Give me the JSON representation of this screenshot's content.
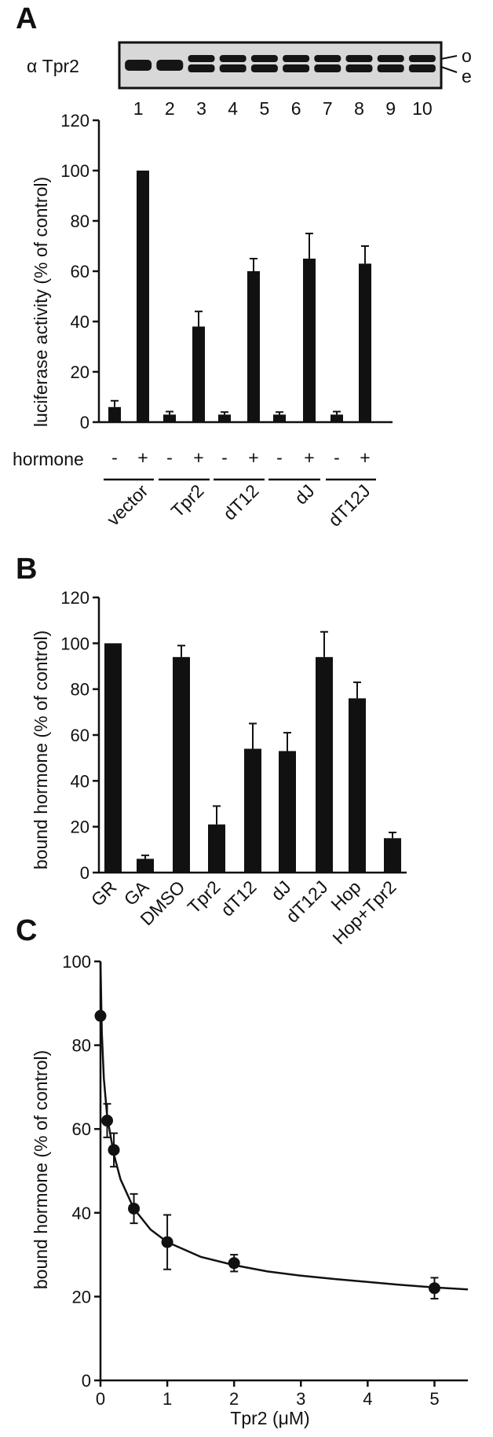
{
  "figure": {
    "colors": {
      "ink": "#111111",
      "bar": "#111111",
      "blot_bg": "#d9d9d9",
      "background": "#ffffff"
    }
  },
  "panels": {
    "A": {
      "letter": "A",
      "blot": {
        "antibody_label": "α Tpr2",
        "lanes": [
          "1",
          "2",
          "3",
          "4",
          "5",
          "6",
          "7",
          "8",
          "9",
          "10"
        ],
        "band_labels": {
          "upper": "o",
          "lower": "e"
        }
      }
    },
    "B": {
      "letter": "B"
    },
    "C": {
      "letter": "C"
    }
  },
  "chart_data": [
    {
      "id": "A",
      "type": "bar",
      "ylabel": "luciferase activity (% of control)",
      "ylim": [
        0,
        120
      ],
      "yticks": [
        0,
        20,
        40,
        60,
        80,
        100,
        120
      ],
      "row_label": "hormone",
      "categories": [
        "-",
        "+",
        "-",
        "+",
        "-",
        "+",
        "-",
        "+",
        "-",
        "+"
      ],
      "values": [
        6,
        100,
        3,
        38,
        3,
        60,
        3,
        65,
        3,
        63
      ],
      "errors": [
        2.5,
        0,
        1.2,
        6,
        1,
        5,
        1,
        10,
        1.2,
        7
      ],
      "groups": [
        "vector",
        "Tpr2",
        "dT12",
        "dJ",
        "dT12J"
      ]
    },
    {
      "id": "B",
      "type": "bar",
      "ylabel": "bound hormone (% of control)",
      "ylim": [
        0,
        120
      ],
      "yticks": [
        0,
        20,
        40,
        60,
        80,
        100,
        120
      ],
      "categories": [
        "GR",
        "GA",
        "DMSO",
        "Tpr2",
        "dT12",
        "dJ",
        "dT12J",
        "Hop",
        "Hop+Tpr2"
      ],
      "values": [
        100,
        6,
        94,
        21,
        54,
        53,
        94,
        76,
        15
      ],
      "errors": [
        0,
        1.5,
        5,
        8,
        11,
        8,
        11,
        7,
        2.5
      ]
    },
    {
      "id": "C",
      "type": "scatter",
      "ylabel": "bound hormone (% of control)",
      "xlabel": "Tpr2 (μM)",
      "xlim": [
        0,
        5.5
      ],
      "ylim": [
        0,
        100
      ],
      "xticks": [
        0,
        1,
        2,
        3,
        4,
        5
      ],
      "yticks": [
        0,
        20,
        40,
        60,
        80,
        100
      ],
      "x": [
        0,
        0.1,
        0.2,
        0.5,
        1,
        2,
        5
      ],
      "y": [
        87,
        62,
        55,
        41,
        33,
        28,
        22
      ],
      "errors": [
        0,
        4,
        4,
        3.5,
        6.5,
        2,
        2.5
      ],
      "fit": {
        "x": [
          0,
          0.02,
          0.05,
          0.1,
          0.2,
          0.3,
          0.5,
          0.75,
          1,
          1.5,
          2,
          2.5,
          3,
          3.5,
          4,
          4.5,
          5,
          5.5
        ],
        "y": [
          100,
          83,
          72,
          63,
          54,
          48,
          41,
          36,
          33,
          29.5,
          27.5,
          26,
          25,
          24.2,
          23.5,
          22.8,
          22.2,
          21.7
        ]
      }
    }
  ]
}
